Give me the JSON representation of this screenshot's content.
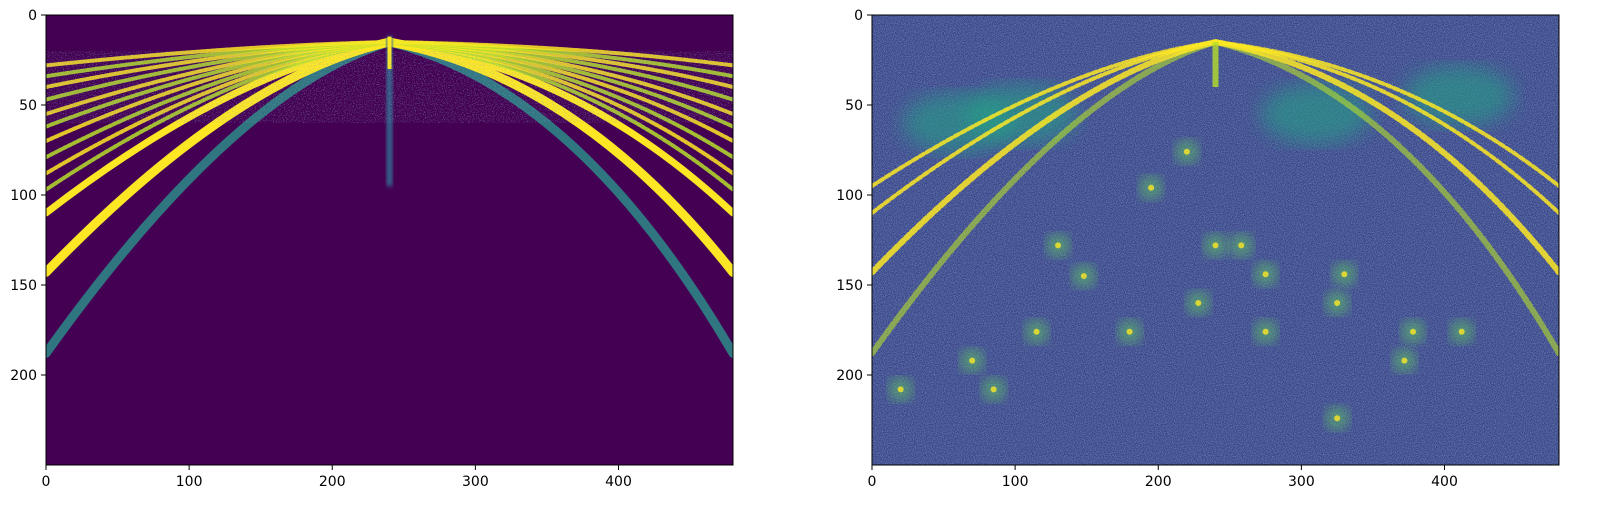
{
  "chart_data": [
    {
      "type": "heatmap",
      "colormap": "viridis",
      "xlim": [
        0,
        480
      ],
      "ylim": [
        250,
        0
      ],
      "xticks": [
        0,
        100,
        200,
        300,
        400
      ],
      "yticks": [
        0,
        50,
        100,
        150,
        200
      ],
      "xtick_labels": [
        "0",
        "100",
        "200",
        "300",
        "400"
      ],
      "ytick_labels": [
        "0",
        "50",
        "100",
        "150",
        "200"
      ],
      "features": {
        "arc_depths": [
          188,
          143,
          110,
          97,
          88,
          79,
          70,
          62,
          55,
          47,
          40,
          34,
          28
        ],
        "apex": [
          240,
          15
        ],
        "center_spike_x": 240
      }
    },
    {
      "type": "heatmap",
      "colormap": "viridis",
      "xlim": [
        0,
        480
      ],
      "ylim": [
        250,
        0
      ],
      "xticks": [
        0,
        100,
        200,
        300,
        400
      ],
      "yticks": [
        0,
        50,
        100,
        150,
        200
      ],
      "xtick_labels": [
        "0",
        "100",
        "200",
        "300",
        "400"
      ],
      "ytick_labels": [
        "0",
        "50",
        "100",
        "150",
        "200"
      ],
      "features": {
        "arc_depths": [
          188,
          143,
          110,
          95
        ],
        "bright_patches": [
          [
            60,
            60
          ],
          [
            105,
            55
          ],
          [
            310,
            55
          ],
          [
            410,
            45
          ]
        ],
        "blob_centers": [
          [
            85,
            208
          ],
          [
            70,
            192
          ],
          [
            130,
            128
          ],
          [
            148,
            145
          ],
          [
            180,
            176
          ],
          [
            195,
            96
          ],
          [
            220,
            76
          ],
          [
            228,
            160
          ],
          [
            240,
            128
          ],
          [
            258,
            128
          ],
          [
            275,
            144
          ],
          [
            275,
            176
          ],
          [
            325,
            160
          ],
          [
            330,
            144
          ],
          [
            372,
            192
          ],
          [
            378,
            176
          ],
          [
            412,
            176
          ],
          [
            325,
            224
          ],
          [
            20,
            208
          ],
          [
            115,
            176
          ]
        ]
      }
    }
  ]
}
